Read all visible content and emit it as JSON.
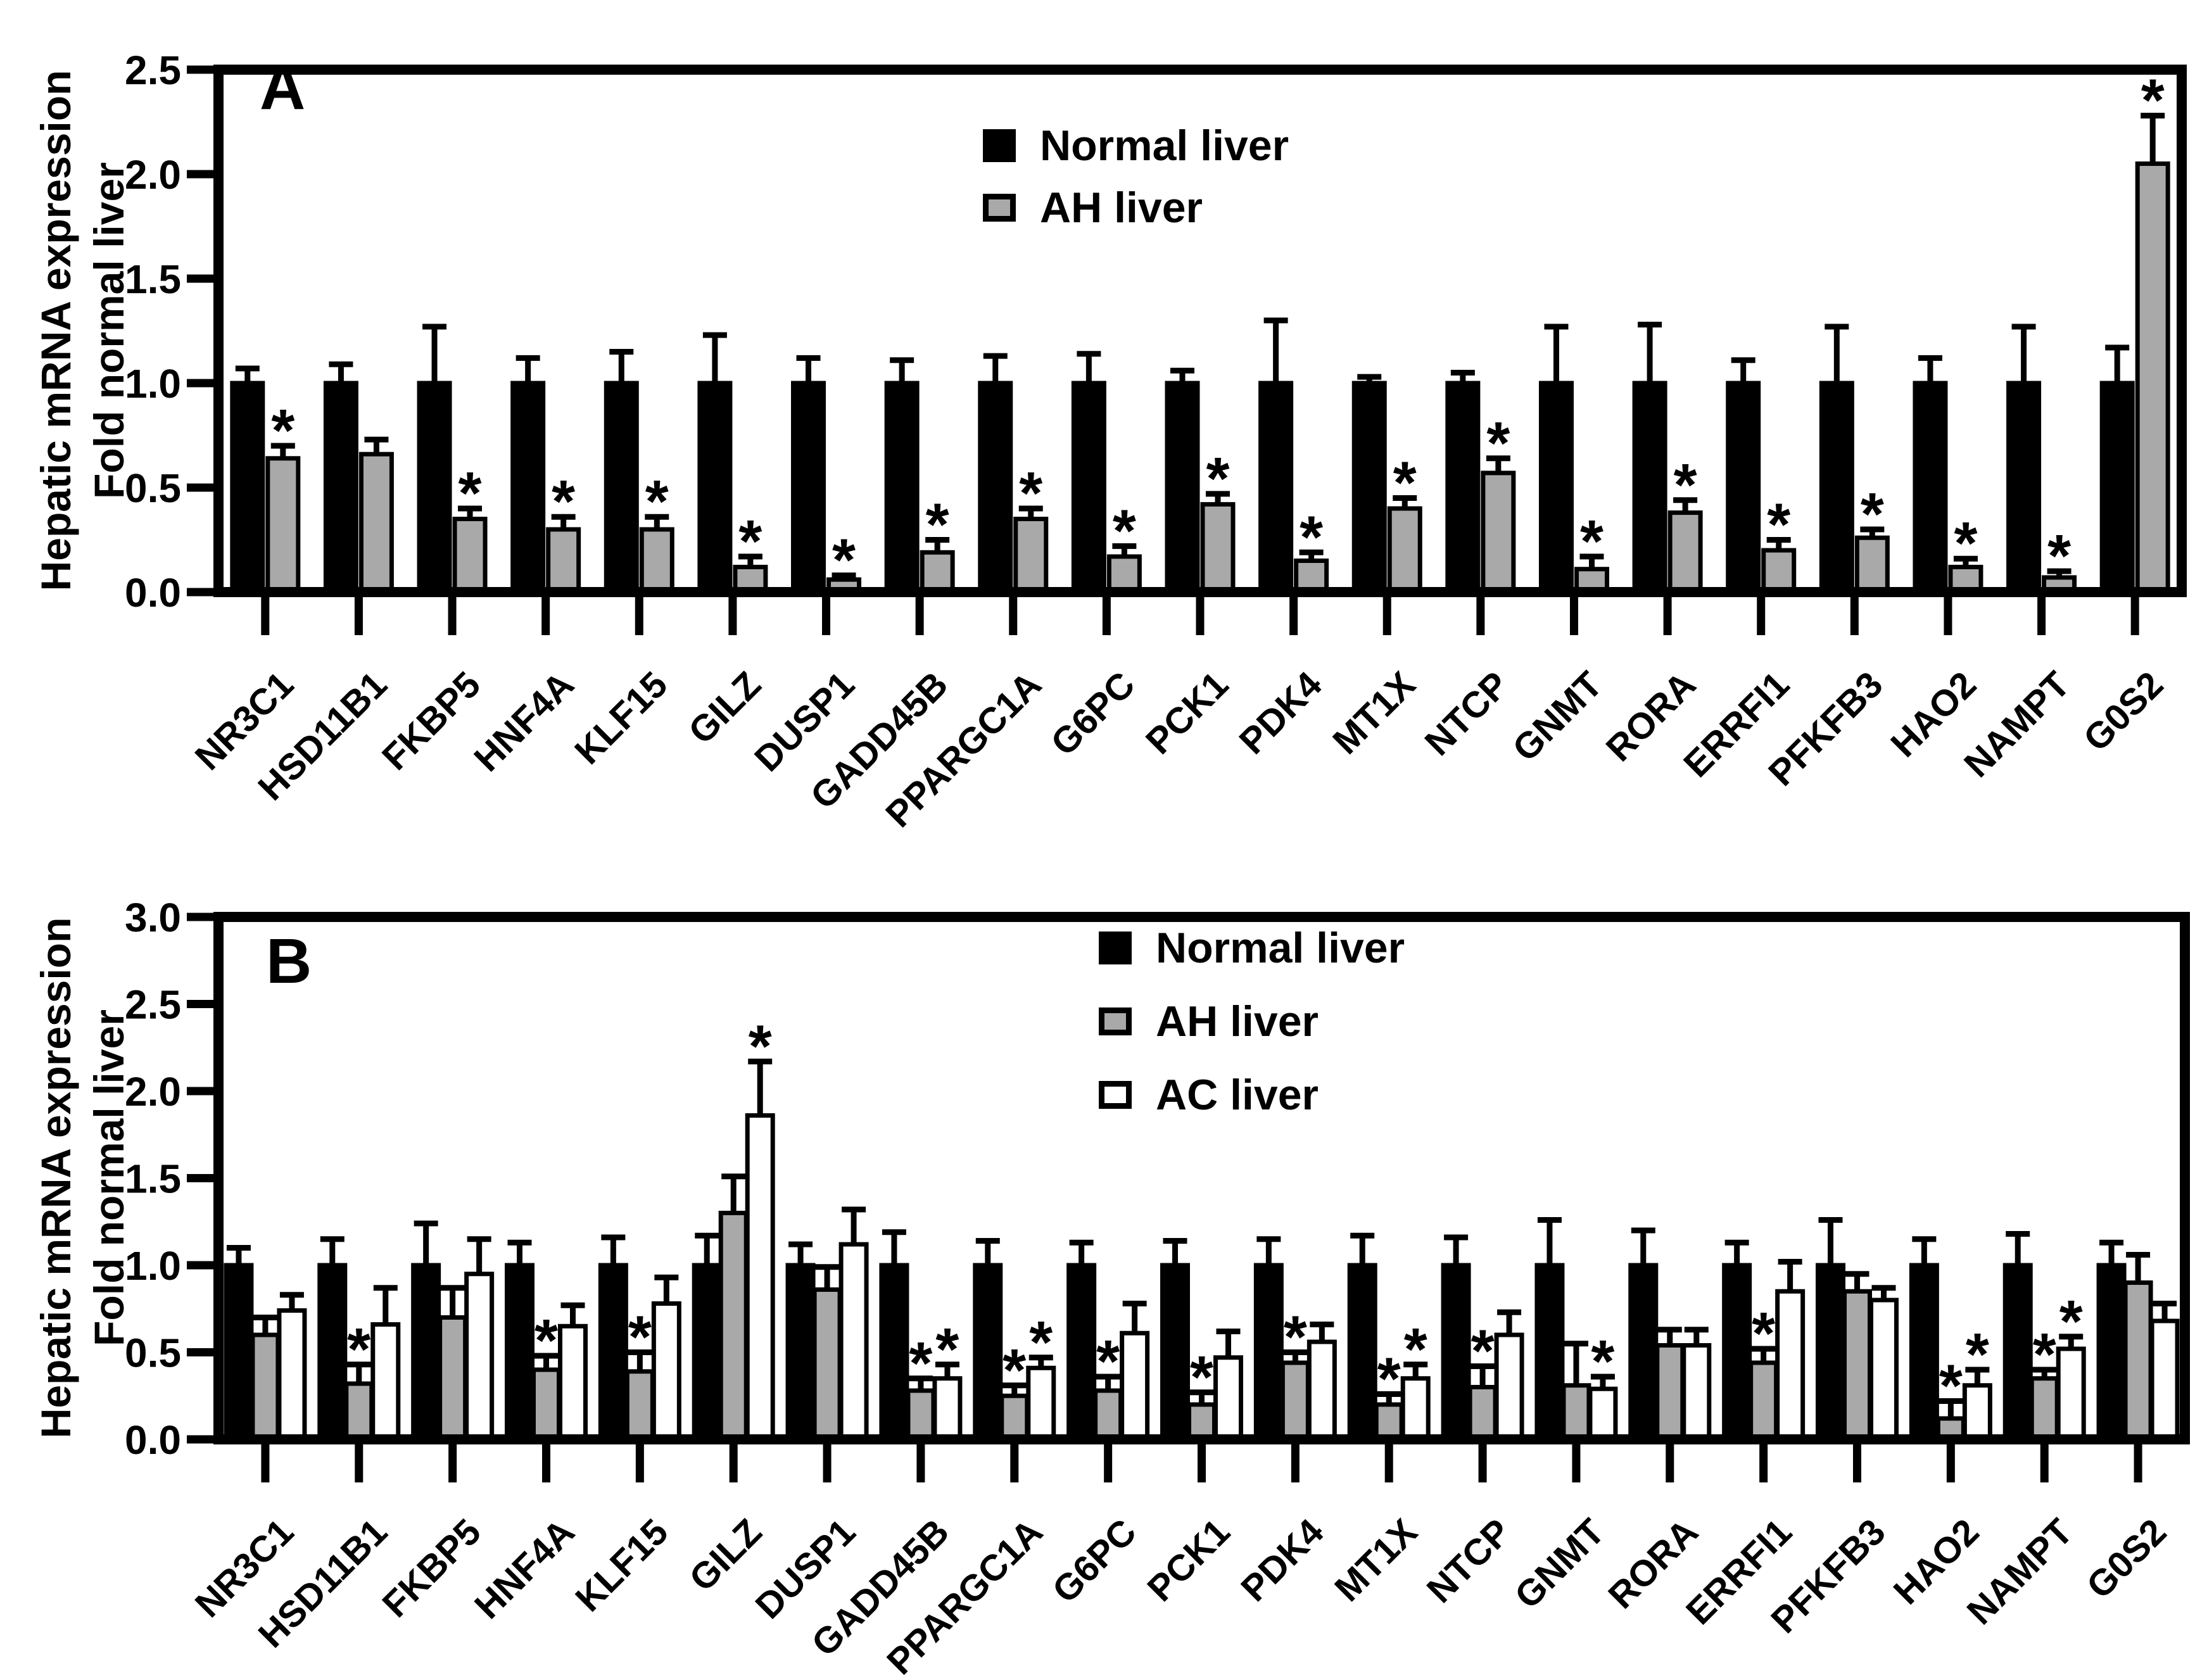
{
  "y_axis_title": {
    "line1": "Hepatic mRNA expression",
    "line2": "Fold normal liver"
  },
  "significance_marker": "*",
  "chart_data": [
    {
      "type": "bar",
      "panel_label": "A",
      "title": "",
      "xlabel": "",
      "ylabel": "Hepatic mRNA expression Fold normal liver",
      "ylim": [
        0,
        2.5
      ],
      "ytick_step": 0.5,
      "grid": false,
      "legend_position": "top-center-inside",
      "categories": [
        "NR3C1",
        "HSD11B1",
        "FKBP5",
        "HNF4A",
        "KLF15",
        "GILZ",
        "DUSP1",
        "GADD45B",
        "PPARGC1A",
        "G6PC",
        "PCK1",
        "PDK4",
        "MT1X",
        "NTCP",
        "GNMT",
        "RORA",
        "ERRFI1",
        "PFKFB3",
        "HAO2",
        "NAMPT",
        "G0S2"
      ],
      "series": [
        {
          "name": "Normal liver",
          "color": "#000000",
          "values": [
            1.0,
            1.0,
            1.0,
            1.0,
            1.0,
            1.0,
            1.0,
            1.0,
            1.0,
            1.0,
            1.0,
            1.0,
            1.0,
            1.0,
            1.0,
            1.0,
            1.0,
            1.0,
            1.0,
            1.0,
            1.0
          ],
          "errors_upper": [
            0.07,
            0.09,
            0.27,
            0.12,
            0.15,
            0.23,
            0.12,
            0.11,
            0.13,
            0.14,
            0.06,
            0.3,
            0.03,
            0.05,
            0.27,
            0.28,
            0.11,
            0.27,
            0.12,
            0.27,
            0.17
          ],
          "significant": [
            false,
            false,
            false,
            false,
            false,
            false,
            false,
            false,
            false,
            false,
            false,
            false,
            false,
            false,
            false,
            false,
            false,
            false,
            false,
            false,
            false
          ]
        },
        {
          "name": "AH liver",
          "color": "#a9a9a9",
          "values": [
            0.64,
            0.66,
            0.35,
            0.3,
            0.3,
            0.12,
            0.06,
            0.19,
            0.35,
            0.17,
            0.42,
            0.15,
            0.4,
            0.57,
            0.11,
            0.38,
            0.2,
            0.26,
            0.12,
            0.07,
            2.05
          ],
          "errors_upper": [
            0.06,
            0.07,
            0.05,
            0.06,
            0.06,
            0.05,
            0.02,
            0.06,
            0.05,
            0.05,
            0.05,
            0.04,
            0.05,
            0.07,
            0.06,
            0.06,
            0.05,
            0.04,
            0.04,
            0.03,
            0.23
          ],
          "significant": [
            true,
            false,
            true,
            true,
            true,
            true,
            true,
            true,
            true,
            true,
            true,
            true,
            true,
            true,
            true,
            true,
            true,
            true,
            true,
            true,
            true
          ]
        }
      ]
    },
    {
      "type": "bar",
      "panel_label": "B",
      "title": "",
      "xlabel": "",
      "ylabel": "Hepatic mRNA expression Fold normal liver",
      "ylim": [
        0,
        3.0
      ],
      "ytick_step": 0.5,
      "grid": false,
      "legend_position": "top-center-inside",
      "categories": [
        "NR3C1",
        "HSD11B1",
        "FKBP5",
        "HNF4A",
        "KLF15",
        "GILZ",
        "DUSP1",
        "GADD45B",
        "PPARGC1A",
        "G6PC",
        "PCK1",
        "PDK4",
        "MT1X",
        "NTCP",
        "GNMT",
        "RORA",
        "ERRFI1",
        "PFKFB3",
        "HAO2",
        "NAMPT",
        "G0S2"
      ],
      "series": [
        {
          "name": "Normal liver",
          "color": "#000000",
          "values": [
            1.0,
            1.0,
            1.0,
            1.0,
            1.0,
            1.0,
            1.0,
            1.0,
            1.0,
            1.0,
            1.0,
            1.0,
            1.0,
            1.0,
            1.0,
            1.0,
            1.0,
            1.0,
            1.0,
            1.0,
            1.0
          ],
          "errors_upper": [
            0.1,
            0.15,
            0.24,
            0.13,
            0.16,
            0.17,
            0.12,
            0.19,
            0.14,
            0.13,
            0.14,
            0.15,
            0.17,
            0.16,
            0.26,
            0.2,
            0.13,
            0.26,
            0.15,
            0.18,
            0.13
          ],
          "significant": [
            false,
            false,
            false,
            false,
            false,
            false,
            false,
            false,
            false,
            false,
            false,
            false,
            false,
            false,
            false,
            false,
            false,
            false,
            false,
            false,
            false
          ]
        },
        {
          "name": "AH liver",
          "color": "#a9a9a9",
          "values": [
            0.6,
            0.32,
            0.7,
            0.4,
            0.39,
            1.3,
            0.86,
            0.28,
            0.25,
            0.28,
            0.2,
            0.44,
            0.2,
            0.3,
            0.31,
            0.54,
            0.44,
            0.85,
            0.12,
            0.35,
            0.9
          ],
          "errors_upper": [
            0.1,
            0.11,
            0.17,
            0.08,
            0.11,
            0.21,
            0.13,
            0.07,
            0.06,
            0.08,
            0.07,
            0.06,
            0.06,
            0.12,
            0.24,
            0.09,
            0.08,
            0.1,
            0.1,
            0.05,
            0.16
          ],
          "significant": [
            false,
            true,
            false,
            true,
            true,
            false,
            false,
            true,
            true,
            true,
            true,
            true,
            true,
            true,
            false,
            false,
            true,
            false,
            true,
            true,
            false
          ]
        },
        {
          "name": "AC liver",
          "color": "#ffffff",
          "values": [
            0.74,
            0.66,
            0.95,
            0.65,
            0.78,
            1.86,
            1.12,
            0.35,
            0.41,
            0.61,
            0.47,
            0.56,
            0.35,
            0.6,
            0.29,
            0.54,
            0.85,
            0.8,
            0.31,
            0.52,
            0.68
          ],
          "errors_upper": [
            0.09,
            0.21,
            0.2,
            0.12,
            0.15,
            0.31,
            0.2,
            0.08,
            0.06,
            0.17,
            0.15,
            0.1,
            0.08,
            0.13,
            0.07,
            0.09,
            0.17,
            0.07,
            0.09,
            0.07,
            0.1
          ],
          "significant": [
            false,
            false,
            false,
            false,
            false,
            true,
            false,
            true,
            true,
            false,
            false,
            false,
            true,
            false,
            true,
            false,
            false,
            false,
            true,
            true,
            false
          ]
        }
      ]
    }
  ]
}
